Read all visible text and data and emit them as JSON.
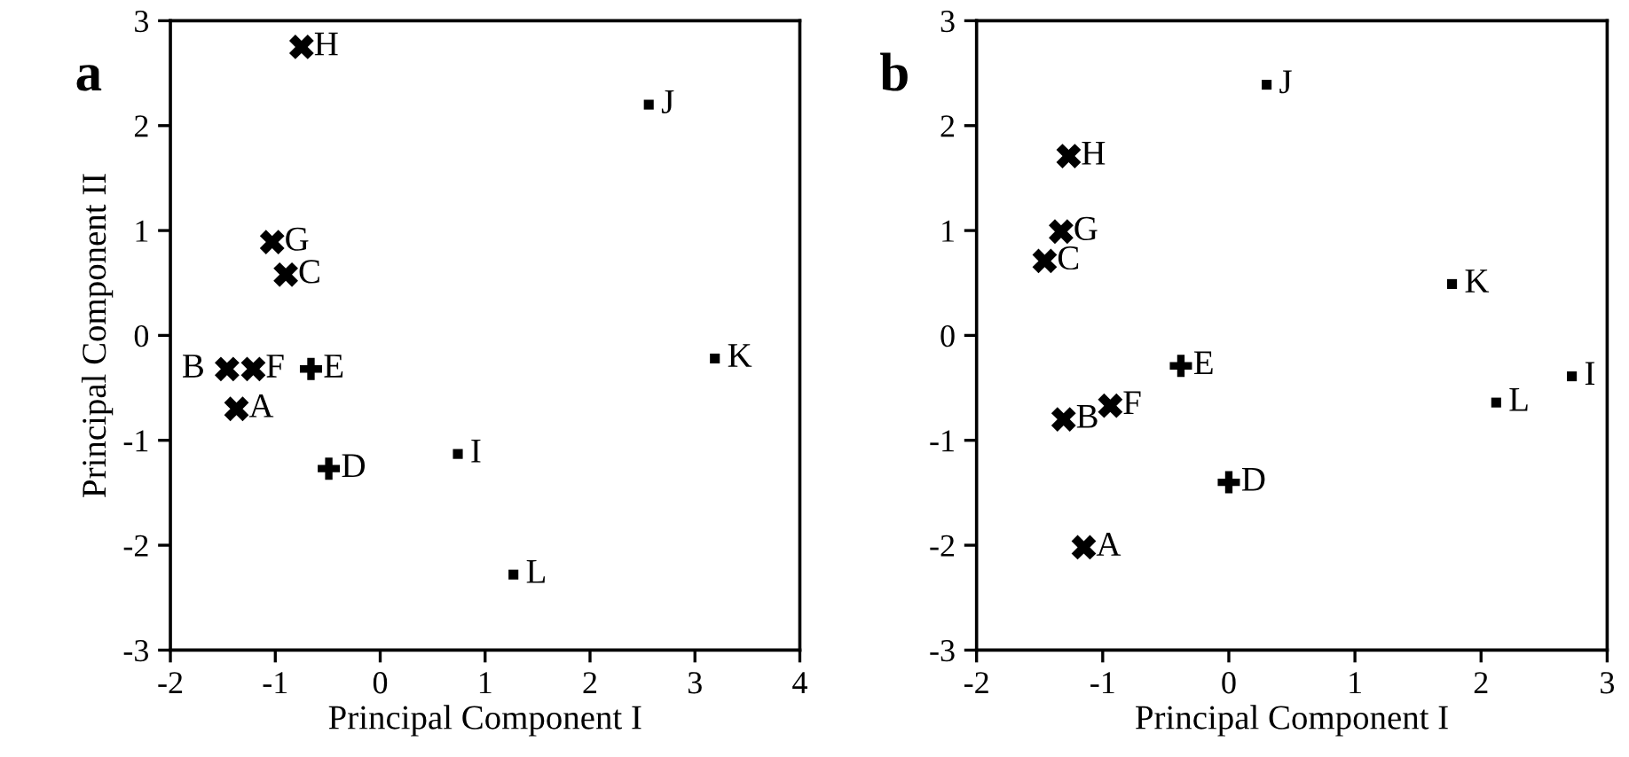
{
  "chart_data": [
    {
      "type": "scatter",
      "title": "a",
      "xlabel": "Principal Component I",
      "ylabel": "Principal Component II",
      "xlim": [
        -2,
        4
      ],
      "ylim": [
        -3,
        3
      ],
      "xticks": [
        -2,
        -1,
        0,
        1,
        2,
        3,
        4
      ],
      "yticks": [
        -3,
        -2,
        -1,
        0,
        1,
        2,
        3
      ],
      "grid": false,
      "series": [
        {
          "marker": "cross",
          "color": "#000000",
          "x": [
            -0.75,
            -1.03,
            -0.9,
            -1.46,
            -1.21,
            -1.37
          ],
          "values": [
            2.75,
            0.89,
            0.58,
            -0.32,
            -0.32,
            -0.7
          ]
        },
        {
          "marker": "plus",
          "color": "#000000",
          "x": [
            -0.66,
            -0.49
          ],
          "values": [
            -0.32,
            -1.27
          ]
        },
        {
          "marker": "square",
          "color": "#000000",
          "x": [
            2.56,
            3.19,
            0.74,
            1.27
          ],
          "values": [
            2.2,
            -0.22,
            -1.13,
            -2.28
          ]
        }
      ],
      "annotations": [
        {
          "text": "H",
          "x": -0.75,
          "y": 2.75
        },
        {
          "text": "G",
          "x": -1.03,
          "y": 0.89
        },
        {
          "text": "C",
          "x": -0.9,
          "y": 0.58
        },
        {
          "text": "B",
          "x": -1.46,
          "y": -0.32
        },
        {
          "text": "F",
          "x": -1.21,
          "y": -0.32
        },
        {
          "text": "A",
          "x": -1.37,
          "y": -0.7
        },
        {
          "text": "E",
          "x": -0.66,
          "y": -0.32
        },
        {
          "text": "D",
          "x": -0.49,
          "y": -1.27
        },
        {
          "text": "J",
          "x": 2.56,
          "y": 2.2
        },
        {
          "text": "K",
          "x": 3.19,
          "y": -0.22
        },
        {
          "text": "I",
          "x": 0.74,
          "y": -1.13
        },
        {
          "text": "L",
          "x": 1.27,
          "y": -2.28
        }
      ]
    },
    {
      "type": "scatter",
      "title": "b",
      "xlabel": "Principal Component I",
      "xlim": [
        -2,
        3
      ],
      "ylim": [
        -3,
        3
      ],
      "xticks": [
        -2,
        -1,
        0,
        1,
        2,
        3
      ],
      "yticks": [
        -3,
        -2,
        -1,
        0,
        1,
        2,
        3
      ],
      "grid": false,
      "series": [
        {
          "marker": "cross",
          "color": "#000000",
          "x": [
            -1.27,
            -1.33,
            -1.46,
            -1.31,
            -0.94,
            -1.15
          ],
          "values": [
            1.71,
            0.99,
            0.71,
            -0.8,
            -0.67,
            -2.02
          ]
        },
        {
          "marker": "plus",
          "color": "#000000",
          "x": [
            -0.38,
            0.0
          ],
          "values": [
            -0.29,
            -1.4
          ]
        },
        {
          "marker": "square",
          "color": "#000000",
          "x": [
            0.3,
            1.77,
            2.72,
            2.12
          ],
          "values": [
            2.39,
            0.49,
            -0.39,
            -0.64
          ]
        }
      ],
      "annotations": [
        {
          "text": "H",
          "x": -1.27,
          "y": 1.71
        },
        {
          "text": "G",
          "x": -1.33,
          "y": 0.99
        },
        {
          "text": "C",
          "x": -1.46,
          "y": 0.71
        },
        {
          "text": "B",
          "x": -1.31,
          "y": -0.8
        },
        {
          "text": "F",
          "x": -0.94,
          "y": -0.67
        },
        {
          "text": "A",
          "x": -1.15,
          "y": -2.02
        },
        {
          "text": "E",
          "x": -0.38,
          "y": -0.29
        },
        {
          "text": "D",
          "x": 0.0,
          "y": -1.4
        },
        {
          "text": "J",
          "x": 0.3,
          "y": 2.39
        },
        {
          "text": "K",
          "x": 1.77,
          "y": 0.49
        },
        {
          "text": "I",
          "x": 2.72,
          "y": -0.39
        },
        {
          "text": "L",
          "x": 2.12,
          "y": -0.64
        }
      ]
    }
  ]
}
